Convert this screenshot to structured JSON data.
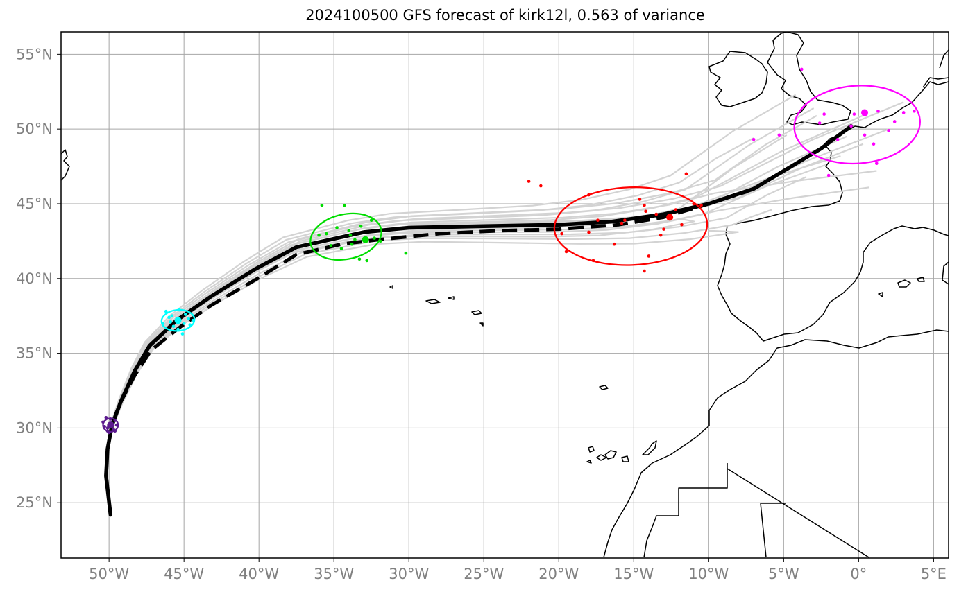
{
  "title": "2024100500 GFS forecast of kirk12l, 0.563 of variance",
  "map": {
    "lon_range": [
      -53.2,
      6.0
    ],
    "lat_range": [
      21.3,
      56.5
    ],
    "lon_ticks": [
      {
        "value": -50,
        "label": "50°W"
      },
      {
        "value": -45,
        "label": "45°W"
      },
      {
        "value": -40,
        "label": "40°W"
      },
      {
        "value": -35,
        "label": "35°W"
      },
      {
        "value": -30,
        "label": "30°W"
      },
      {
        "value": -25,
        "label": "25°W"
      },
      {
        "value": -20,
        "label": "20°W"
      },
      {
        "value": -15,
        "label": "15°W"
      },
      {
        "value": -10,
        "label": "10°W"
      },
      {
        "value": -5,
        "label": "5°W"
      },
      {
        "value": 0,
        "label": "0°"
      },
      {
        "value": 5,
        "label": "5°E"
      }
    ],
    "lat_ticks": [
      {
        "value": 25,
        "label": "25°N"
      },
      {
        "value": 30,
        "label": "30°N"
      },
      {
        "value": 35,
        "label": "35°N"
      },
      {
        "value": 40,
        "label": "40°N"
      },
      {
        "value": 45,
        "label": "45°N"
      },
      {
        "value": 50,
        "label": "50°N"
      },
      {
        "value": 55,
        "label": "55°N"
      }
    ],
    "grid": true,
    "colors": {
      "grid": "#a6a6a6",
      "tick_label": "#808080",
      "ensemble": "#d3d3d3",
      "coast": "#000000",
      "track": "#000000"
    }
  },
  "chart_data": {
    "type": "scatter",
    "mean_track": [
      [
        -49.9,
        24.2
      ],
      [
        -50.2,
        26.8
      ],
      [
        -50.1,
        28.6
      ],
      [
        -49.8,
        30.2
      ],
      [
        -49.2,
        31.8
      ],
      [
        -48.3,
        33.8
      ],
      [
        -47.3,
        35.5
      ],
      [
        -45.5,
        37.2
      ],
      [
        -43.2,
        38.8
      ],
      [
        -40.3,
        40.6
      ],
      [
        -37.5,
        42.1
      ],
      [
        -33.0,
        43.1
      ],
      [
        -30.0,
        43.4
      ],
      [
        -25.0,
        43.5
      ],
      [
        -20.0,
        43.6
      ],
      [
        -16.5,
        43.8
      ],
      [
        -13.0,
        44.3
      ],
      [
        -10.0,
        45.0
      ],
      [
        -7.0,
        46.0
      ],
      [
        -4.5,
        47.5
      ],
      [
        -2.5,
        48.7
      ],
      [
        -0.5,
        50.2
      ]
    ],
    "control_track": [
      [
        -49.8,
        30.2
      ],
      [
        -49.3,
        31.6
      ],
      [
        -48.3,
        33.5
      ],
      [
        -47.2,
        35.2
      ],
      [
        -45.2,
        36.8
      ],
      [
        -43.2,
        38.2
      ],
      [
        -40.1,
        40.0
      ],
      [
        -37.5,
        41.6
      ],
      [
        -34.5,
        42.3
      ],
      [
        -32.0,
        42.6
      ],
      [
        -28.0,
        43.0
      ],
      [
        -24.0,
        43.2
      ],
      [
        -20.0,
        43.3
      ],
      [
        -16.0,
        43.6
      ],
      [
        -13.0,
        44.1
      ],
      [
        -10.0,
        45.0
      ],
      [
        -7.5,
        45.8
      ]
    ],
    "ensemble_members": [
      {
        "dlat": 0.0,
        "dlon": 0.0,
        "end": [
          -0.8,
          49.5
        ]
      },
      {
        "dlat": 0.6,
        "dlon": -0.4,
        "end": [
          0.5,
          51.0
        ]
      },
      {
        "dlat": -0.6,
        "dlon": 0.3,
        "end": [
          0.7,
          46.1
        ]
      },
      {
        "dlat": 1.2,
        "dlon": -0.8,
        "end": [
          -3.0,
          51.4
        ]
      },
      {
        "dlat": -1.2,
        "dlon": 0.6,
        "end": [
          -3.5,
          46.8
        ]
      },
      {
        "dlat": 1.8,
        "dlon": -1.0,
        "end": [
          -7.0,
          49.4
        ]
      },
      {
        "dlat": -1.8,
        "dlon": 0.8,
        "end": [
          -5.8,
          44.6
        ]
      },
      {
        "dlat": 0.3,
        "dlon": 0.5,
        "end": [
          2.0,
          50.0
        ]
      },
      {
        "dlat": -0.3,
        "dlon": -0.6,
        "end": [
          -1.2,
          48.2
        ]
      },
      {
        "dlat": 2.4,
        "dlon": -1.3,
        "end": [
          -4.2,
          52.3
        ]
      },
      {
        "dlat": -2.4,
        "dlon": 1.0,
        "end": [
          -10.0,
          43.2
        ]
      },
      {
        "dlat": 0.9,
        "dlon": 0.2,
        "end": [
          1.2,
          47.2
        ]
      },
      {
        "dlat": -0.9,
        "dlon": -0.2,
        "end": [
          -2.2,
          47.6
        ]
      },
      {
        "dlat": 1.5,
        "dlon": 0.4,
        "end": [
          3.0,
          51.8
        ]
      },
      {
        "dlat": -1.5,
        "dlon": -0.5,
        "end": [
          -12.0,
          44.0
        ]
      },
      {
        "dlat": 0.5,
        "dlon": 1.0,
        "end": [
          0.3,
          49.0
        ]
      },
      {
        "dlat": -0.4,
        "dlon": -1.0,
        "end": [
          -4.8,
          49.6
        ]
      },
      {
        "dlat": 2.0,
        "dlon": 0.2,
        "end": [
          -2.8,
          50.9
        ]
      }
    ],
    "ensemble_points": [
      {
        "color": "#5b1a8e",
        "center": [
          -49.9,
          30.2
        ],
        "points": [
          [
            -50.2,
            30.7
          ],
          [
            -49.6,
            30.5
          ],
          [
            -50.1,
            29.8
          ],
          [
            -49.7,
            29.9
          ],
          [
            -50.3,
            30.1
          ],
          [
            -49.5,
            30.2
          ],
          [
            -49.9,
            30.6
          ],
          [
            -50.0,
            29.7
          ],
          [
            -49.8,
            30.3
          ],
          [
            -50.4,
            30.4
          ],
          [
            -49.6,
            29.8
          ],
          [
            -50.1,
            30.0
          ]
        ]
      },
      {
        "color": "#00ffff",
        "center": [
          -45.4,
          37.2
        ],
        "points": [
          [
            -46.2,
            37.8
          ],
          [
            -45.8,
            37.5
          ],
          [
            -45.0,
            37.0
          ],
          [
            -44.6,
            36.9
          ],
          [
            -45.4,
            36.6
          ],
          [
            -44.9,
            37.6
          ],
          [
            -46.4,
            37.0
          ],
          [
            -45.7,
            36.8
          ],
          [
            -44.7,
            37.3
          ],
          [
            -45.3,
            37.9
          ],
          [
            -45.9,
            37.1
          ],
          [
            -44.4,
            37.2
          ],
          [
            -45.1,
            36.3
          ],
          [
            -46.0,
            37.4
          ]
        ]
      },
      {
        "color": "#00dd00",
        "center": [
          -32.9,
          42.6
        ],
        "points": [
          [
            -35.8,
            44.9
          ],
          [
            -34.3,
            44.9
          ],
          [
            -33.2,
            43.5
          ],
          [
            -34.8,
            43.4
          ],
          [
            -35.5,
            43.0
          ],
          [
            -33.8,
            42.3
          ],
          [
            -32.5,
            43.9
          ],
          [
            -35.2,
            42.2
          ],
          [
            -32.8,
            41.2
          ],
          [
            -33.3,
            41.3
          ],
          [
            -31.9,
            42.5
          ],
          [
            -30.2,
            41.7
          ],
          [
            -33.9,
            42.9
          ],
          [
            -34.0,
            43.2
          ],
          [
            -36.0,
            42.9
          ],
          [
            -32.3,
            42.7
          ],
          [
            -34.5,
            42.0
          ],
          [
            -33.6,
            42.6
          ]
        ]
      },
      {
        "color": "#ff0000",
        "center": [
          -12.6,
          44.1
        ],
        "points": [
          [
            -22.0,
            46.5
          ],
          [
            -21.2,
            46.2
          ],
          [
            -18.0,
            45.6
          ],
          [
            -11.5,
            47.0
          ],
          [
            -14.6,
            45.3
          ],
          [
            -14.3,
            44.9
          ],
          [
            -19.8,
            43.0
          ],
          [
            -19.5,
            41.8
          ],
          [
            -18.0,
            43.1
          ],
          [
            -17.4,
            43.9
          ],
          [
            -16.3,
            42.3
          ],
          [
            -15.8,
            43.7
          ],
          [
            -14.0,
            41.5
          ],
          [
            -12.6,
            44.1
          ],
          [
            -11.8,
            43.6
          ],
          [
            -13.0,
            43.3
          ],
          [
            -13.5,
            44.3
          ],
          [
            -14.2,
            44.5
          ],
          [
            -13.2,
            42.9
          ],
          [
            -14.3,
            40.5
          ],
          [
            -17.7,
            41.2
          ],
          [
            -12.2,
            44.6
          ],
          [
            -10.5,
            44.9
          ],
          [
            -11.0,
            45.0
          ],
          [
            -15.6,
            43.9
          ]
        ]
      },
      {
        "color": "#ff00ff",
        "center": [
          0.4,
          51.1
        ],
        "points": [
          [
            -3.8,
            54.0
          ],
          [
            -2.3,
            51.0
          ],
          [
            -2.6,
            50.4
          ],
          [
            -5.3,
            49.6
          ],
          [
            -7.0,
            49.3
          ],
          [
            -2.0,
            46.9
          ],
          [
            0.5,
            51.0
          ],
          [
            1.3,
            51.2
          ],
          [
            2.0,
            49.9
          ],
          [
            1.0,
            49.0
          ],
          [
            3.0,
            51.1
          ],
          [
            1.2,
            47.7
          ],
          [
            -0.5,
            50.2
          ],
          [
            0.4,
            49.6
          ],
          [
            2.4,
            50.5
          ],
          [
            -1.4,
            49.3
          ],
          [
            3.7,
            51.2
          ],
          [
            -0.3,
            51.0
          ]
        ]
      }
    ],
    "ellipses": [
      {
        "color": "#5b1a8e",
        "center": [
          -49.9,
          30.2
        ],
        "rx_deg": 0.5,
        "ry_deg": 0.45,
        "rot": 0
      },
      {
        "color": "#00ffff",
        "center": [
          -45.4,
          37.2
        ],
        "rx_deg": 1.1,
        "ry_deg": 0.7,
        "rot": -5
      },
      {
        "color": "#00dd00",
        "center": [
          -34.2,
          42.8
        ],
        "rx_deg": 2.4,
        "ry_deg": 1.5,
        "rot": -12
      },
      {
        "color": "#ff0000",
        "center": [
          -15.2,
          43.5
        ],
        "rx_deg": 5.1,
        "ry_deg": 2.6,
        "rot": -2
      },
      {
        "color": "#ff00ff",
        "center": [
          -0.1,
          50.3
        ],
        "rx_deg": 4.2,
        "ry_deg": 2.6,
        "rot": -4
      }
    ]
  }
}
